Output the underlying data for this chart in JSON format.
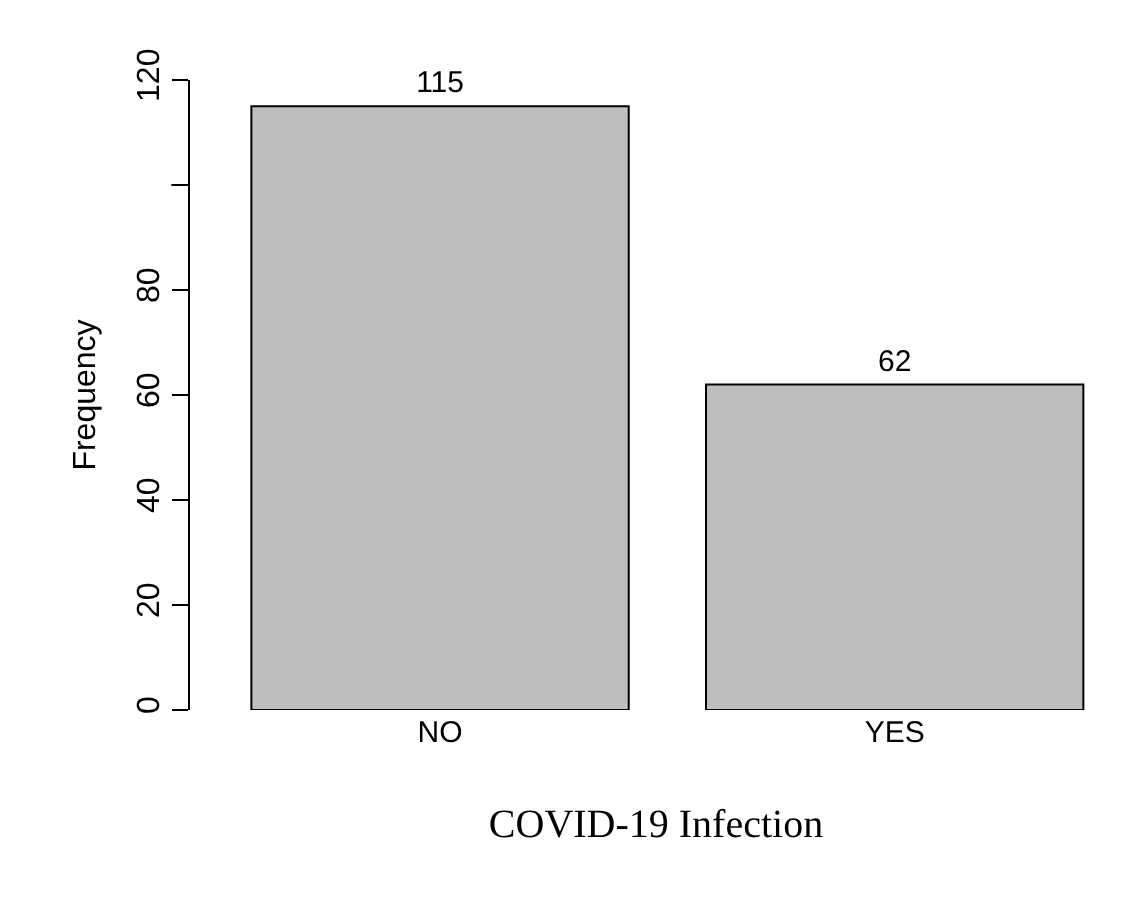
{
  "chart_data": {
    "type": "bar",
    "xlabel": "COVID-19 Infection",
    "ylabel": "Frequency",
    "categories": [
      "NO",
      "YES"
    ],
    "values": [
      115,
      62
    ],
    "color": "#bebebe",
    "ylim": [
      0,
      120
    ],
    "yticks": [
      0,
      20,
      40,
      60,
      80,
      {
        "value": 100,
        "label": null
      },
      120
    ],
    "data_labels": true,
    "grid": false
  }
}
